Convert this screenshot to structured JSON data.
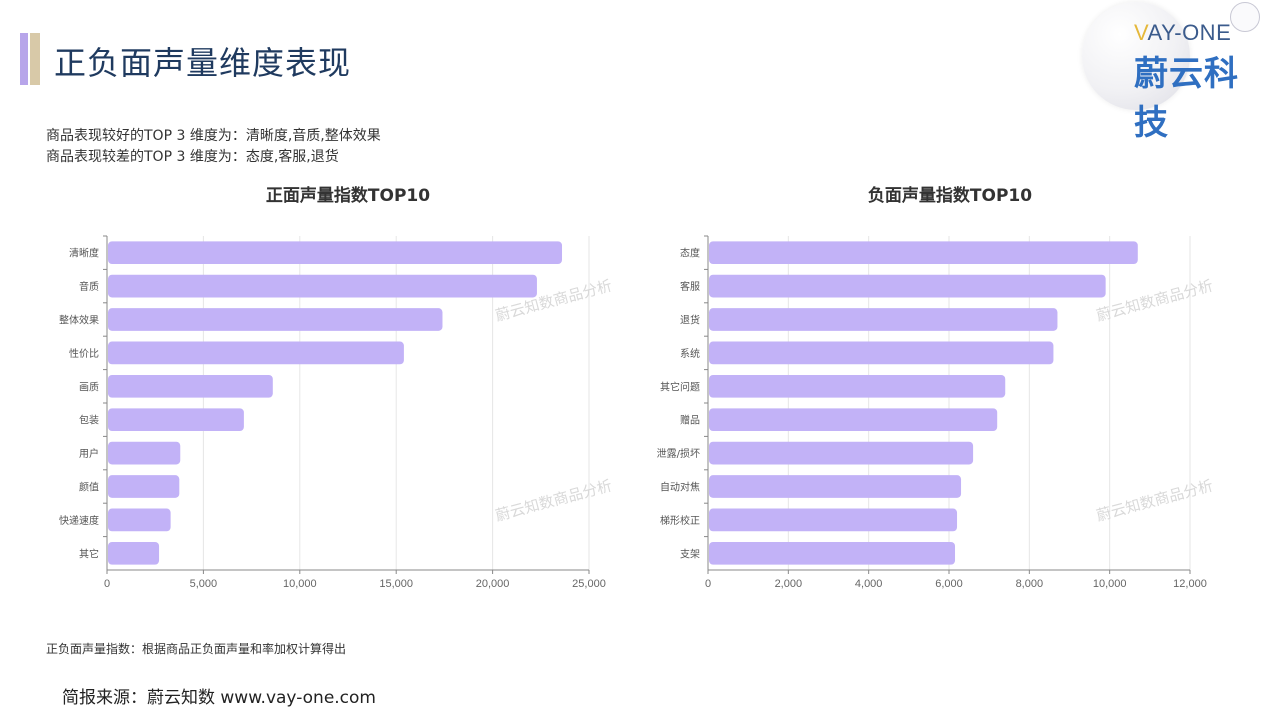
{
  "page": {
    "title": "正负面声量维度表现",
    "logo_en_v": "V",
    "logo_en_rest": "AY-ONE",
    "logo_cn": "蔚云科技",
    "summary_line1": "商品表现较好的TOP 3 维度为：清晰度,音质,整体效果",
    "summary_line2": "商品表现较差的TOP 3 维度为：态度,客服,退货",
    "footnote": "正负面声量指数：根据商品正负面声量和率加权计算得出",
    "source": "简报来源：蔚云知数 www.vay-one.com",
    "watermark": "蔚云知数商品分析"
  },
  "colors": {
    "bar": "#c2b2f7",
    "title_text": "#1f3a5f",
    "grid": "#e6e6e6"
  },
  "chart_data": [
    {
      "type": "bar",
      "orientation": "horizontal",
      "title": "正面声量指数TOP10",
      "categories": [
        "清晰度",
        "音质",
        "整体效果",
        "性价比",
        "画质",
        "包装",
        "用户",
        "颜值",
        "快递速度",
        "其它"
      ],
      "values": [
        23600,
        22300,
        17400,
        15400,
        8600,
        7100,
        3800,
        3750,
        3300,
        2700
      ],
      "xlim": [
        0,
        25000
      ],
      "xticks": [
        0,
        5000,
        10000,
        15000,
        20000,
        25000
      ],
      "xtick_labels": [
        "0",
        "5,000",
        "10,000",
        "15,000",
        "20,000",
        "25,000"
      ],
      "grid": "vertical"
    },
    {
      "type": "bar",
      "orientation": "horizontal",
      "title": "负面声量指数TOP10",
      "categories": [
        "态度",
        "客服",
        "退货",
        "系统",
        "其它问题",
        "赠品",
        "泄露/损坏",
        "自动对焦",
        "梯形校正",
        "支架"
      ],
      "values": [
        10700,
        9900,
        8700,
        8600,
        7400,
        7200,
        6600,
        6300,
        6200,
        6150
      ],
      "xlim": [
        0,
        12000
      ],
      "xticks": [
        0,
        2000,
        4000,
        6000,
        8000,
        10000,
        12000
      ],
      "xtick_labels": [
        "0",
        "2,000",
        "4,000",
        "6,000",
        "8,000",
        "10,000",
        "12,000"
      ],
      "grid": "vertical"
    }
  ]
}
